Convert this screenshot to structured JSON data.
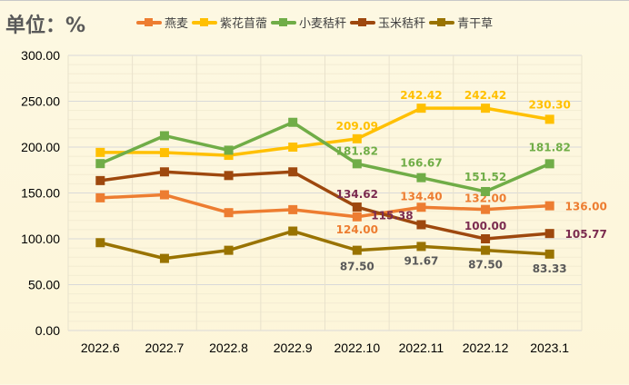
{
  "unit_label": "单位：%",
  "chart_data": {
    "type": "line",
    "title": "",
    "xlabel": "",
    "ylabel": "",
    "ylim": [
      0,
      300
    ],
    "yticks": [
      "0.00",
      "50.00",
      "100.00",
      "150.00",
      "200.00",
      "250.00",
      "300.00"
    ],
    "grid": true,
    "legend_position": "top",
    "categories": [
      "2022.6",
      "2022.7",
      "2022.8",
      "2022.9",
      "2022.10",
      "2022.11",
      "2022.12",
      "2023.1"
    ],
    "series": [
      {
        "name": "燕麦",
        "color": "#ed7d31",
        "label_color": "#ed7d31",
        "values": [
          144.7,
          148,
          128.5,
          131.8,
          124.0,
          134.4,
          132.0,
          136.0
        ],
        "labels": [
          null,
          null,
          null,
          null,
          "124.00",
          "134.40",
          "132.00",
          "136.00"
        ]
      },
      {
        "name": "紫花苜蓿",
        "color": "#ffc000",
        "label_color": "#ffc000",
        "values": [
          194.2,
          194,
          191,
          200,
          209.09,
          242.42,
          242.42,
          230.3
        ],
        "labels": [
          null,
          null,
          null,
          null,
          "209.09",
          "242.42",
          "242.42",
          "230.30"
        ]
      },
      {
        "name": "小麦秸秆",
        "color": "#70ad47",
        "label_color": "#70ad47",
        "values": [
          182,
          212.4,
          196.6,
          227,
          181.82,
          166.67,
          151.52,
          181.82
        ],
        "labels": [
          null,
          null,
          null,
          null,
          "181.82",
          "166.67",
          "151.52",
          "181.82"
        ]
      },
      {
        "name": "玉米秸秆",
        "color": "#9e480e",
        "label_color": "#7b2b4f",
        "values": [
          163.5,
          173,
          169,
          173,
          134.62,
          115.38,
          100.0,
          105.77
        ],
        "labels": [
          null,
          null,
          null,
          null,
          "134.62",
          "115.38",
          "100.00",
          "105.77"
        ]
      },
      {
        "name": "青干草",
        "color": "#997300",
        "label_color": "#595959",
        "values": [
          95.8,
          78.6,
          87.5,
          108.4,
          87.5,
          91.67,
          87.5,
          83.33
        ],
        "labels": [
          null,
          null,
          null,
          null,
          "87.50",
          "91.67",
          "87.50",
          "83.33"
        ]
      }
    ]
  }
}
